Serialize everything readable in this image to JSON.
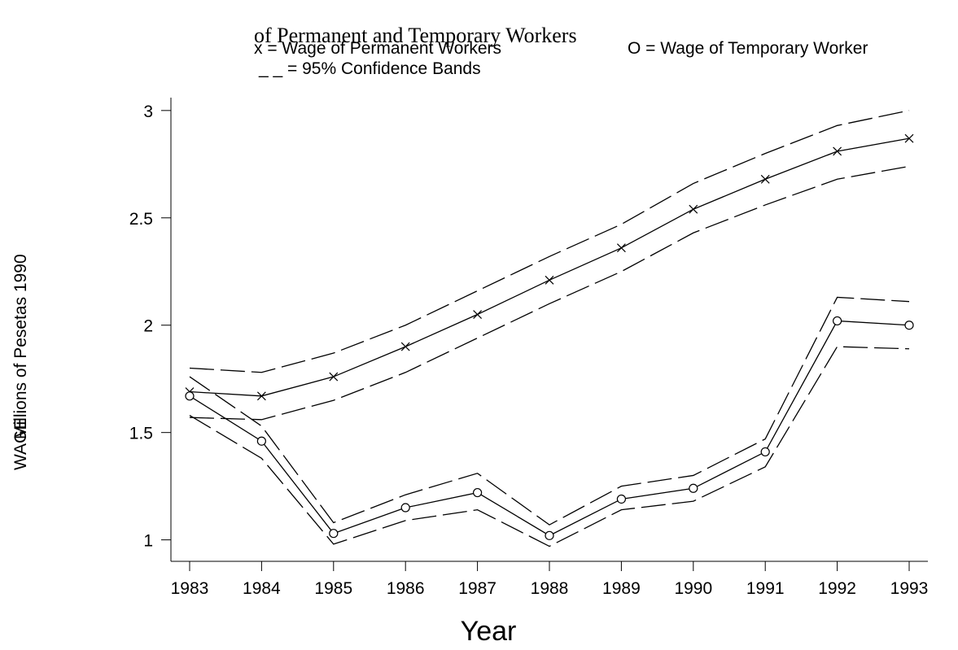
{
  "chart_data": {
    "type": "line",
    "title": "of Permanent and Temporary Workers",
    "legend": [
      "x = Wage of Permanent Workers",
      "O = Wage of Temporary Worker",
      "_ _ = 95% Confidence Bands"
    ],
    "xlabel": "Year",
    "ylabel": [
      "WAGE",
      "Millions of Pesetas 1990"
    ],
    "x": [
      1983,
      1984,
      1985,
      1986,
      1987,
      1988,
      1989,
      1990,
      1991,
      1992,
      1993
    ],
    "xlim": [
      1982.74,
      1993.26
    ],
    "xticks": [
      1983,
      1984,
      1985,
      1986,
      1987,
      1988,
      1989,
      1990,
      1991,
      1992,
      1993
    ],
    "ylim": [
      0.9,
      3.06
    ],
    "yticks": [
      1,
      1.5,
      2,
      2.5,
      3
    ],
    "series": [
      {
        "color": "#000000",
        "marker": "x",
        "dashed": false,
        "values": [
          1.69,
          1.67,
          1.76,
          1.9,
          2.05,
          2.21,
          2.36,
          2.54,
          2.68,
          2.81,
          2.87
        ]
      },
      {
        "color": "#000000",
        "marker": "none",
        "dashed": true,
        "values": [
          1.8,
          1.78,
          1.87,
          2.0,
          2.16,
          2.32,
          2.47,
          2.66,
          2.8,
          2.93,
          3.0
        ]
      },
      {
        "color": "#000000",
        "marker": "none",
        "dashed": true,
        "values": [
          1.57,
          1.56,
          1.65,
          1.78,
          1.94,
          2.1,
          2.25,
          2.43,
          2.56,
          2.68,
          2.74
        ]
      },
      {
        "color": "#000000",
        "marker": "o",
        "dashed": false,
        "values": [
          1.67,
          1.46,
          1.03,
          1.15,
          1.22,
          1.02,
          1.19,
          1.24,
          1.41,
          2.02,
          2.0
        ]
      },
      {
        "color": "#000000",
        "marker": "none",
        "dashed": true,
        "values": [
          1.76,
          1.53,
          1.08,
          1.21,
          1.31,
          1.07,
          1.25,
          1.3,
          1.47,
          2.13,
          2.11
        ]
      },
      {
        "color": "#000000",
        "marker": "none",
        "dashed": true,
        "values": [
          1.58,
          1.38,
          0.98,
          1.09,
          1.14,
          0.97,
          1.14,
          1.18,
          1.34,
          1.9,
          1.89
        ]
      }
    ]
  }
}
